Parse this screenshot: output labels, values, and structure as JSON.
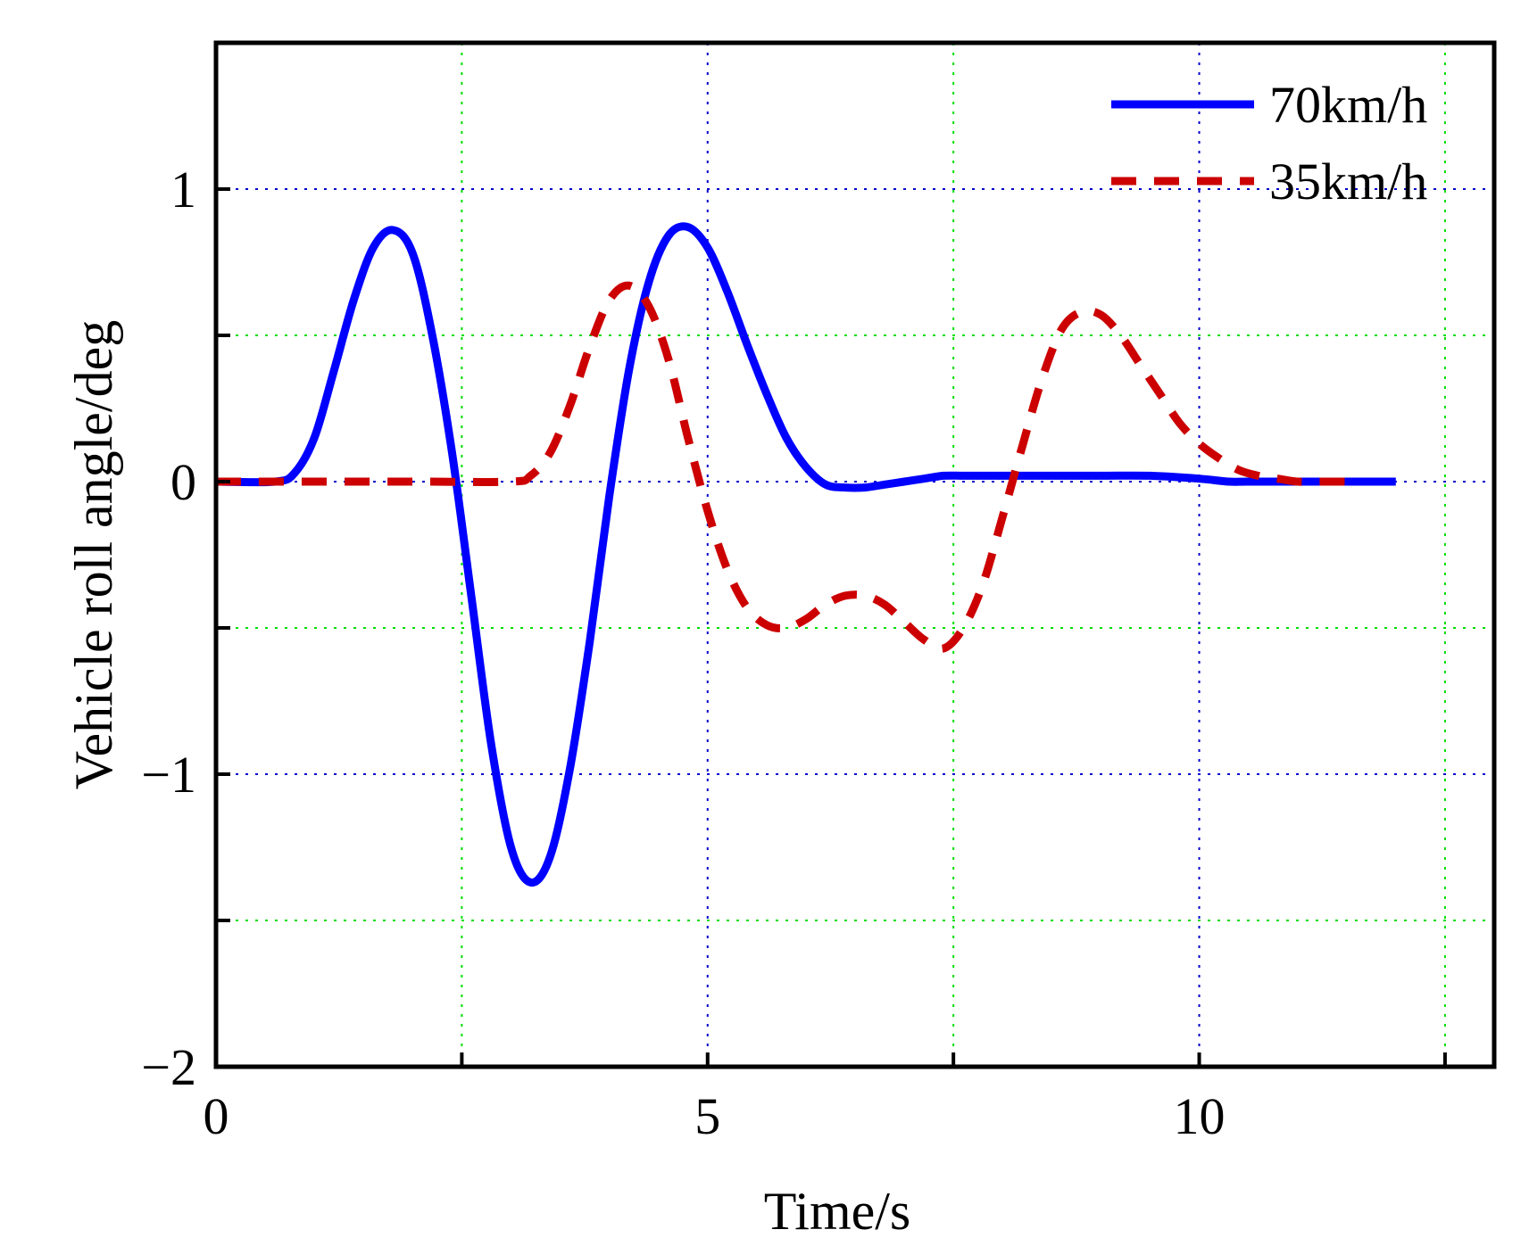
{
  "chart_data": {
    "type": "line",
    "title": "",
    "xlabel": "Time/s",
    "ylabel": "Vehicle roll angle/deg",
    "xlim": [
      0,
      13
    ],
    "ylim": [
      -2,
      1.5
    ],
    "x_ticks": [
      0,
      5,
      10
    ],
    "x_tick_labels": [
      "0",
      "5",
      "10"
    ],
    "y_ticks": [
      -2,
      -1,
      0,
      1
    ],
    "y_tick_labels": [
      "−2",
      "−1",
      "0",
      "1"
    ],
    "major_grid_color": "#0000cc",
    "minor_grid_color": "#00dd00",
    "grid": true,
    "legend_position": "top-right",
    "series": [
      {
        "name": "70km/h",
        "color": "#0000ff",
        "style": "solid",
        "x": [
          0,
          0.6,
          0.8,
          1.0,
          1.2,
          1.4,
          1.6,
          1.8,
          2.0,
          2.2,
          2.4,
          2.6,
          2.8,
          3.0,
          3.2,
          3.4,
          3.6,
          3.8,
          4.0,
          4.2,
          4.4,
          4.6,
          4.8,
          5.0,
          5.2,
          5.4,
          5.6,
          5.8,
          6.0,
          6.2,
          6.4,
          6.6,
          6.8,
          7.0,
          7.2,
          7.4,
          7.6,
          7.8,
          8.0,
          8.5,
          9.0,
          9.5,
          10.0,
          10.3,
          10.5,
          11.0,
          11.5,
          12.0
        ],
        "y": [
          0,
          0,
          0.03,
          0.15,
          0.38,
          0.62,
          0.8,
          0.86,
          0.78,
          0.5,
          0.1,
          -0.4,
          -0.9,
          -1.25,
          -1.37,
          -1.28,
          -0.98,
          -0.55,
          -0.05,
          0.38,
          0.68,
          0.84,
          0.87,
          0.8,
          0.65,
          0.47,
          0.3,
          0.15,
          0.05,
          -0.01,
          -0.02,
          -0.02,
          -0.01,
          0.0,
          0.01,
          0.02,
          0.02,
          0.02,
          0.02,
          0.02,
          0.02,
          0.02,
          0.01,
          0.0,
          0.0,
          0.0,
          0.0,
          0.0
        ]
      },
      {
        "name": "35km/h",
        "color": "#cc0000",
        "style": "dashed",
        "x": [
          0,
          2.0,
          3.0,
          3.2,
          3.4,
          3.6,
          3.8,
          4.0,
          4.2,
          4.4,
          4.6,
          4.8,
          5.0,
          5.2,
          5.4,
          5.6,
          5.8,
          6.0,
          6.2,
          6.4,
          6.6,
          6.8,
          7.0,
          7.2,
          7.4,
          7.6,
          7.8,
          8.0,
          8.2,
          8.4,
          8.6,
          8.8,
          9.0,
          9.2,
          9.4,
          9.6,
          9.8,
          10.0,
          10.2,
          10.4,
          10.6,
          10.8,
          11.0,
          11.2,
          11.4,
          11.6
        ],
        "y": [
          0,
          0,
          0,
          0.02,
          0.1,
          0.26,
          0.46,
          0.62,
          0.67,
          0.6,
          0.42,
          0.15,
          -0.1,
          -0.3,
          -0.43,
          -0.49,
          -0.5,
          -0.47,
          -0.42,
          -0.39,
          -0.39,
          -0.42,
          -0.48,
          -0.54,
          -0.57,
          -0.5,
          -0.35,
          -0.12,
          0.12,
          0.35,
          0.52,
          0.58,
          0.57,
          0.5,
          0.4,
          0.3,
          0.2,
          0.13,
          0.08,
          0.04,
          0.02,
          0.01,
          0.0,
          0.0,
          0.0,
          0.0
        ]
      }
    ]
  }
}
